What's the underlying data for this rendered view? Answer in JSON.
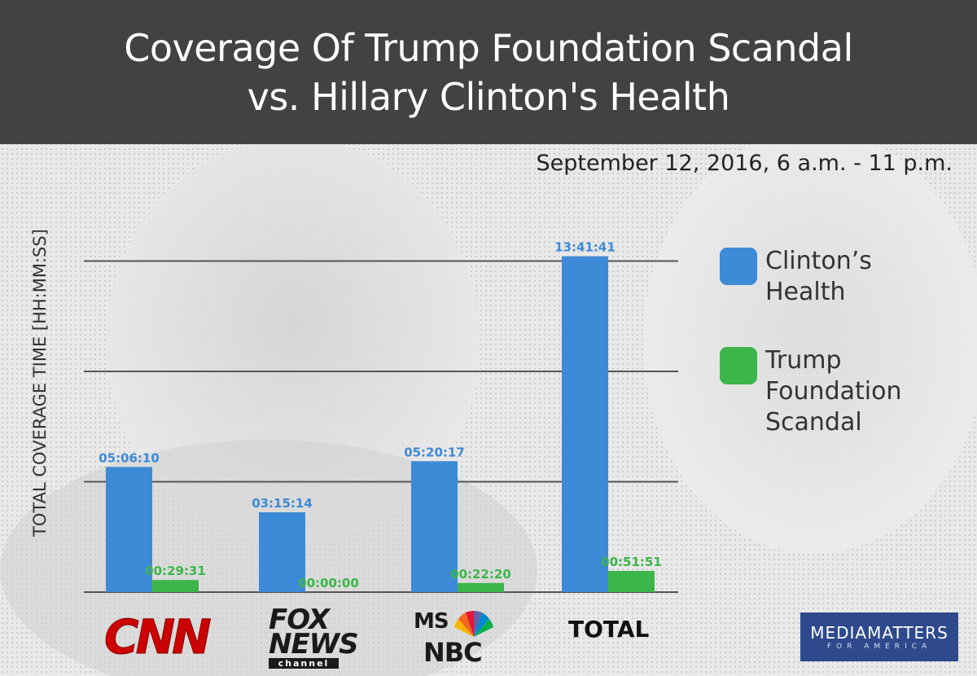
{
  "header": {
    "title_line1": "Coverage Of Trump Foundation Scandal",
    "title_line2": "vs. Hillary Clinton's Health"
  },
  "subtitle": "September 12, 2016, 6 a.m. - 11 p.m.",
  "legend": [
    {
      "label": "Clinton’s Health",
      "color": "#3d8ad6"
    },
    {
      "label": "Trump Foundation Scandal",
      "color": "#3cb54a"
    }
  ],
  "networks": {
    "cnn": "CNN",
    "fox_word1": "FOX",
    "fox_word2": "NEWS",
    "fox_channel": "channel",
    "msnbc_ms": "MS",
    "msnbc_nbc": "NBC",
    "total": "TOTAL"
  },
  "brand": {
    "main": "MEDIAMATTERS",
    "sub": "FOR AMERICA"
  },
  "colors": {
    "clinton": "#3d8ad6",
    "trump": "#3cb54a",
    "header_bg": "#424242",
    "gridline": "#555555"
  },
  "chart_data": {
    "type": "bar",
    "title": "Coverage Of Trump Foundation Scandal vs. Hillary Clinton's Health",
    "subtitle": "September 12, 2016, 6 a.m. - 11 p.m.",
    "xlabel": "",
    "ylabel": "TOTAL COVERAGE TIME [HH:MM:SS]",
    "categories": [
      "CNN",
      "FOX NEWS channel",
      "MSNBC",
      "TOTAL"
    ],
    "ylim_seconds": [
      0,
      54000
    ],
    "gridlines_seconds": [
      0,
      16200,
      32400,
      48600
    ],
    "series": [
      {
        "name": "Clinton’s Health",
        "color": "#3d8ad6",
        "labels": [
          "05:06:10",
          "03:15:14",
          "05:20:17",
          "13:41:41"
        ],
        "values_seconds": [
          18370,
          11714,
          19217,
          49301
        ]
      },
      {
        "name": "Trump Foundation Scandal",
        "color": "#3cb54a",
        "labels": [
          "00:29:31",
          "00:00:00",
          "00:22:20",
          "00:51:51"
        ],
        "values_seconds": [
          1771,
          0,
          1340,
          3111
        ]
      }
    ],
    "legend_position": "right"
  }
}
